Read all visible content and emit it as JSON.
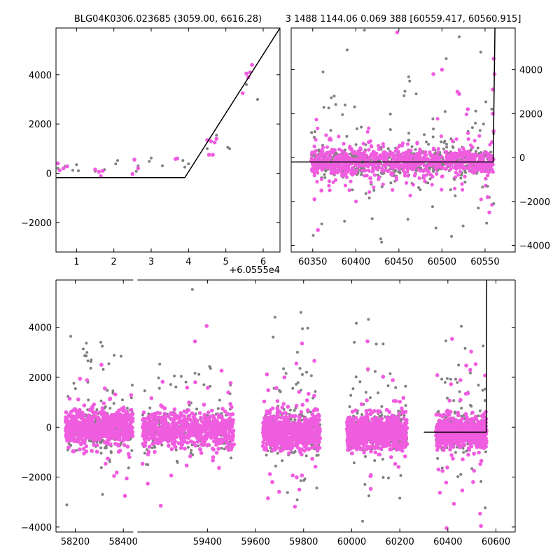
{
  "figure": {
    "title_left": "BLG04K0306.023685 (3059.00, 6616.28)",
    "title_right": "3 1488 1144.06 0.069 388 [60559.417, 60560.915]"
  },
  "colors": {
    "gray_points": "#808080",
    "magenta_points": "#f05ce0",
    "model_line": "#000000",
    "axes": "#000000"
  },
  "chart_data": [
    {
      "id": "top-left",
      "type": "scatter",
      "xlim": [
        0.45,
        6.45
      ],
      "ylim": [
        -3200,
        5900
      ],
      "xticks": [
        "1",
        "2",
        "3",
        "4",
        "5",
        "6"
      ],
      "xtick_values": [
        1,
        2,
        3,
        4,
        5,
        6
      ],
      "yticks": [
        "−2000",
        "0",
        "2000",
        "4000"
      ],
      "ytick_values": [
        -2000,
        0,
        2000,
        4000
      ],
      "ytick_side": "left",
      "offset_label": "+6.0555e4",
      "model_line": {
        "x": [
          0.45,
          3.9,
          6.45
        ],
        "y": [
          -180,
          -180,
          5900
        ]
      },
      "series": [
        {
          "color": "gray",
          "points": [
            [
              0.5,
              200
            ],
            [
              0.7,
              280
            ],
            [
              0.9,
              120
            ],
            [
              1.0,
              350
            ],
            [
              1.05,
              100
            ],
            [
              1.5,
              80
            ],
            [
              1.75,
              150
            ],
            [
              2.05,
              380
            ],
            [
              2.1,
              520
            ],
            [
              2.6,
              80
            ],
            [
              2.65,
              300
            ],
            [
              2.95,
              480
            ],
            [
              3.0,
              620
            ],
            [
              3.3,
              300
            ],
            [
              3.85,
              520
            ],
            [
              3.9,
              250
            ],
            [
              4.0,
              380
            ],
            [
              4.5,
              1000
            ],
            [
              4.75,
              1550
            ],
            [
              5.05,
              1050
            ],
            [
              5.1,
              1000
            ],
            [
              5.55,
              3600
            ],
            [
              5.85,
              3000
            ]
          ]
        },
        {
          "color": "magenta",
          "points": [
            [
              0.5,
              400
            ],
            [
              0.55,
              120
            ],
            [
              0.65,
              200
            ],
            [
              0.75,
              280
            ],
            [
              1.5,
              150
            ],
            [
              1.6,
              60
            ],
            [
              1.65,
              -120
            ],
            [
              1.7,
              100
            ],
            [
              2.5,
              -30
            ],
            [
              2.55,
              550
            ],
            [
              2.65,
              200
            ],
            [
              3.65,
              580
            ],
            [
              3.7,
              600
            ],
            [
              4.5,
              1350
            ],
            [
              4.55,
              750
            ],
            [
              4.6,
              1300
            ],
            [
              4.65,
              750
            ],
            [
              4.7,
              1250
            ],
            [
              4.75,
              1400
            ],
            [
              5.45,
              3250
            ],
            [
              5.55,
              4050
            ],
            [
              5.6,
              3900
            ],
            [
              5.65,
              4100
            ],
            [
              5.7,
              4400
            ]
          ]
        }
      ]
    },
    {
      "id": "top-right",
      "type": "scatter",
      "xlim": [
        60325,
        60585
      ],
      "ylim": [
        -4300,
        5900
      ],
      "xticks": [
        "60350",
        "60400",
        "60450",
        "60500",
        "60550"
      ],
      "xtick_values": [
        60350,
        60400,
        60450,
        60500,
        60550
      ],
      "yticks": [
        "−4000",
        "−2000",
        "0",
        "2000",
        "4000"
      ],
      "ytick_values": [
        -4000,
        -2000,
        0,
        2000,
        4000
      ],
      "ytick_side": "right",
      "model_line": {
        "x": [
          60325,
          60559.4,
          60561.5
        ],
        "y": [
          -200,
          -200,
          5900
        ]
      },
      "cloud": {
        "x_range": [
          60348,
          60560
        ],
        "gray_count": 700,
        "magenta_count": 900,
        "center": -200,
        "spread": 280,
        "outlier_frac": 0.18,
        "outlier_range": [
          -4000,
          5800
        ]
      },
      "series": [
        {
          "color": "gray",
          "points": [
            [
              60390,
              4900
            ],
            [
              60410,
              5800
            ],
            [
              60362,
              3900
            ],
            [
              60375,
              2800
            ],
            [
              60470,
              2900
            ],
            [
              60520,
              5500
            ],
            [
              60545,
              4800
            ],
            [
              60490,
              1300
            ],
            [
              60505,
              4500
            ],
            [
              60429,
              -3700
            ],
            [
              60430,
              -3850
            ],
            [
              60553,
              -1300
            ],
            [
              60560,
              1100
            ],
            [
              60560,
              -2100
            ]
          ]
        },
        {
          "color": "magenta",
          "points": [
            [
              60448,
              5700
            ],
            [
              60518,
              3000
            ],
            [
              60520,
              2900
            ],
            [
              60530,
              2200
            ],
            [
              60490,
              3800
            ],
            [
              60500,
              4000
            ],
            [
              60356,
              -3300
            ],
            [
              60360,
              -1500
            ],
            [
              60352,
              -1900
            ],
            [
              60555,
              -2500
            ],
            [
              60553,
              -1800
            ],
            [
              60560,
              4500
            ],
            [
              60561,
              3800
            ],
            [
              60559,
              3100
            ],
            [
              60560,
              1200
            ],
            [
              60558,
              700
            ],
            [
              60559,
              2000
            ]
          ]
        }
      ]
    },
    {
      "id": "bottom",
      "type": "scatter",
      "xlim": [
        58120,
        60680
      ],
      "ylim": [
        -4200,
        5900
      ],
      "xticks": [
        "58200",
        "58400",
        "59400",
        "59600",
        "59800",
        "60000",
        "60200",
        "60400",
        "60600"
      ],
      "xtick_values": [
        58200,
        58400,
        59400,
        59600,
        59800,
        60000,
        60200,
        60400,
        60600
      ],
      "yticks": [
        "−4000",
        "−2000",
        "0",
        "2000",
        "4000"
      ],
      "ytick_values": [
        -4000,
        -2000,
        0,
        2000,
        4000
      ],
      "ytick_side": "left",
      "break_x": [
        58450,
        59100
      ],
      "model_line": {
        "x": [
          60300,
          60559.4,
          60561.5
        ],
        "y": [
          -200,
          -200,
          5900
        ]
      },
      "seasons": [
        {
          "x": [
            58160,
            58440
          ],
          "spread": 320,
          "center": 0
        },
        {
          "x": [
            59130,
            59510
          ],
          "spread": 330,
          "center": -100
        },
        {
          "x": [
            59630,
            59870
          ],
          "spread": 350,
          "center": -200
        },
        {
          "x": [
            59980,
            60230
          ],
          "spread": 340,
          "center": -200
        },
        {
          "x": [
            60350,
            60560
          ],
          "spread": 280,
          "center": -200
        }
      ],
      "cloud": {
        "gray_per_season": 260,
        "magenta_per_season": 700,
        "outlier_frac": 0.2,
        "outlier_range": [
          -4100,
          5800
        ]
      }
    }
  ]
}
